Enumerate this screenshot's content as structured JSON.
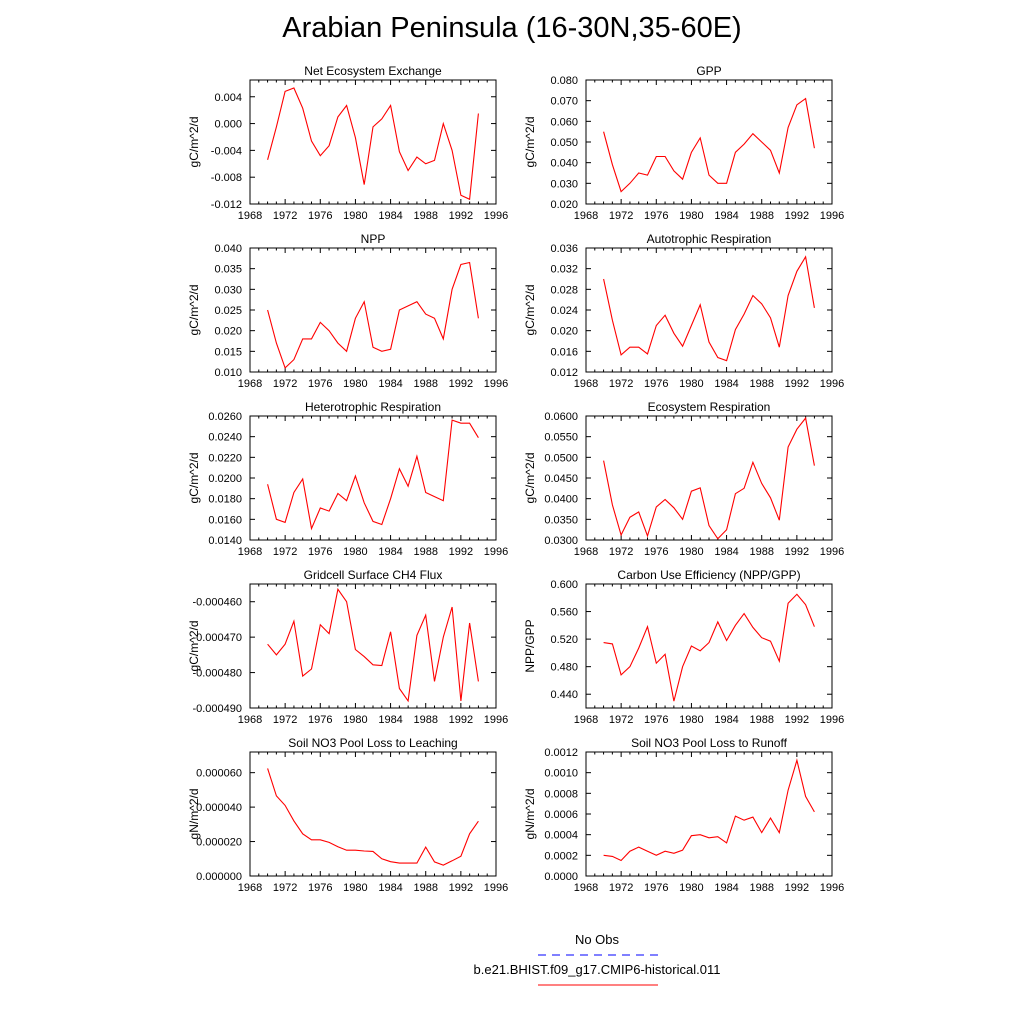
{
  "page_title": "Arabian Peninsula (16-30N,35-60E)",
  "colors": {
    "model_line": "#ff0000",
    "obs_line": "#0000ff"
  },
  "legend": {
    "obs_label": "No Obs",
    "model_label": "b.e21.BHIST.f09_g17.CMIP6-historical.011"
  },
  "chart_data": [
    {
      "type": "line",
      "title": "Net Ecosystem Exchange",
      "xlabel": "",
      "ylabel": "gC/m^2/d",
      "xlim": [
        1968,
        1996
      ],
      "xticks": [
        "1968",
        "1972",
        "1976",
        "1980",
        "1984",
        "1988",
        "1992",
        "1996"
      ],
      "ylim": [
        -0.012,
        0.0065
      ],
      "yticks": [
        "0.004",
        "0.000",
        "-0.004",
        "-0.008",
        "-0.012"
      ],
      "x": [
        1970,
        1971,
        1972,
        1973,
        1974,
        1975,
        1976,
        1977,
        1978,
        1979,
        1980,
        1981,
        1982,
        1983,
        1984,
        1985,
        1986,
        1987,
        1988,
        1989,
        1990,
        1991,
        1992,
        1993,
        1994
      ],
      "series": [
        {
          "values": [
            -0.0054,
            -0.0005,
            0.0048,
            0.0053,
            0.0023,
            -0.0026,
            -0.0048,
            -0.0033,
            0.001,
            0.0027,
            -0.0021,
            -0.0091,
            -0.0005,
            0.0007,
            0.0027,
            -0.0042,
            -0.007,
            -0.005,
            -0.006,
            -0.0055,
            0.0,
            -0.004,
            -0.0107,
            -0.0113,
            0.0015
          ]
        }
      ]
    },
    {
      "type": "line",
      "title": "GPP",
      "xlabel": "",
      "ylabel": "gC/m^2/d",
      "xlim": [
        1968,
        1996
      ],
      "xticks": [
        "1968",
        "1972",
        "1976",
        "1980",
        "1984",
        "1988",
        "1992",
        "1996"
      ],
      "ylim": [
        0.02,
        0.08
      ],
      "yticks": [
        "0.080",
        "0.070",
        "0.060",
        "0.050",
        "0.040",
        "0.030",
        "0.020"
      ],
      "x": [
        1970,
        1971,
        1972,
        1973,
        1974,
        1975,
        1976,
        1977,
        1978,
        1979,
        1980,
        1981,
        1982,
        1983,
        1984,
        1985,
        1986,
        1987,
        1988,
        1989,
        1990,
        1991,
        1992,
        1993,
        1994
      ],
      "series": [
        {
          "values": [
            0.055,
            0.039,
            0.026,
            0.03,
            0.035,
            0.034,
            0.043,
            0.043,
            0.036,
            0.032,
            0.045,
            0.052,
            0.034,
            0.03,
            0.03,
            0.045,
            0.049,
            0.054,
            0.05,
            0.046,
            0.035,
            0.057,
            0.068,
            0.071,
            0.047
          ]
        }
      ]
    },
    {
      "type": "line",
      "title": "NPP",
      "xlabel": "",
      "ylabel": "gC/m^2/d",
      "xlim": [
        1968,
        1996
      ],
      "xticks": [
        "1968",
        "1972",
        "1976",
        "1980",
        "1984",
        "1988",
        "1992",
        "1996"
      ],
      "ylim": [
        0.01,
        0.04
      ],
      "yticks": [
        "0.040",
        "0.035",
        "0.030",
        "0.025",
        "0.020",
        "0.015",
        "0.010"
      ],
      "x": [
        1970,
        1971,
        1972,
        1973,
        1974,
        1975,
        1976,
        1977,
        1978,
        1979,
        1980,
        1981,
        1982,
        1983,
        1984,
        1985,
        1986,
        1987,
        1988,
        1989,
        1990,
        1991,
        1992,
        1993,
        1994
      ],
      "series": [
        {
          "values": [
            0.025,
            0.017,
            0.011,
            0.013,
            0.018,
            0.018,
            0.022,
            0.02,
            0.017,
            0.015,
            0.023,
            0.027,
            0.016,
            0.015,
            0.0155,
            0.025,
            0.026,
            0.027,
            0.024,
            0.023,
            0.018,
            0.03,
            0.036,
            0.0365,
            0.023
          ]
        }
      ]
    },
    {
      "type": "line",
      "title": "Autotrophic Respiration",
      "xlabel": "",
      "ylabel": "gC/m^2/d",
      "xlim": [
        1968,
        1996
      ],
      "xticks": [
        "1968",
        "1972",
        "1976",
        "1980",
        "1984",
        "1988",
        "1992",
        "1996"
      ],
      "ylim": [
        0.012,
        0.036
      ],
      "yticks": [
        "0.036",
        "0.032",
        "0.028",
        "0.024",
        "0.020",
        "0.016",
        "0.012"
      ],
      "x": [
        1970,
        1971,
        1972,
        1973,
        1974,
        1975,
        1976,
        1977,
        1978,
        1979,
        1980,
        1981,
        1982,
        1983,
        1984,
        1985,
        1986,
        1987,
        1988,
        1989,
        1990,
        1991,
        1992,
        1993,
        1994
      ],
      "series": [
        {
          "values": [
            0.03,
            0.022,
            0.0153,
            0.0168,
            0.0168,
            0.0155,
            0.021,
            0.023,
            0.0195,
            0.017,
            0.021,
            0.025,
            0.0178,
            0.0148,
            0.0142,
            0.0202,
            0.0232,
            0.0268,
            0.0252,
            0.0225,
            0.0168,
            0.0268,
            0.0315,
            0.0343,
            0.0244
          ]
        }
      ]
    },
    {
      "type": "line",
      "title": "Heterotrophic Respiration",
      "xlabel": "",
      "ylabel": "gC/m^2/d",
      "xlim": [
        1968,
        1996
      ],
      "xticks": [
        "1968",
        "1972",
        "1976",
        "1980",
        "1984",
        "1988",
        "1992",
        "1996"
      ],
      "ylim": [
        0.014,
        0.026
      ],
      "yticks": [
        "0.0260",
        "0.0240",
        "0.0220",
        "0.0200",
        "0.0180",
        "0.0160",
        "0.0140"
      ],
      "x": [
        1970,
        1971,
        1972,
        1973,
        1974,
        1975,
        1976,
        1977,
        1978,
        1979,
        1980,
        1981,
        1982,
        1983,
        1984,
        1985,
        1986,
        1987,
        1988,
        1989,
        1990,
        1991,
        1992,
        1993,
        1994
      ],
      "series": [
        {
          "values": [
            0.0194,
            0.016,
            0.0157,
            0.0186,
            0.0199,
            0.0151,
            0.0171,
            0.0168,
            0.0185,
            0.0178,
            0.0202,
            0.0176,
            0.0158,
            0.0155,
            0.018,
            0.0209,
            0.0192,
            0.0221,
            0.0186,
            0.0182,
            0.0178,
            0.0256,
            0.0253,
            0.0253,
            0.0239
          ]
        }
      ]
    },
    {
      "type": "line",
      "title": "Ecosystem Respiration",
      "xlabel": "",
      "ylabel": "gC/m^2/d",
      "xlim": [
        1968,
        1996
      ],
      "xticks": [
        "1968",
        "1972",
        "1976",
        "1980",
        "1984",
        "1988",
        "1992",
        "1996"
      ],
      "ylim": [
        0.03,
        0.06
      ],
      "yticks": [
        "0.0600",
        "0.0550",
        "0.0500",
        "0.0450",
        "0.0400",
        "0.0350",
        "0.0300"
      ],
      "x": [
        1970,
        1971,
        1972,
        1973,
        1974,
        1975,
        1976,
        1977,
        1978,
        1979,
        1980,
        1981,
        1982,
        1983,
        1984,
        1985,
        1986,
        1987,
        1988,
        1989,
        1990,
        1991,
        1992,
        1993,
        1994
      ],
      "series": [
        {
          "values": [
            0.0492,
            0.0385,
            0.0312,
            0.0355,
            0.0368,
            0.031,
            0.038,
            0.0398,
            0.0378,
            0.035,
            0.0418,
            0.0426,
            0.0335,
            0.0303,
            0.0325,
            0.0412,
            0.0425,
            0.0488,
            0.0437,
            0.0402,
            0.0348,
            0.0525,
            0.0568,
            0.0595,
            0.048
          ]
        }
      ]
    },
    {
      "type": "line",
      "title": "Gridcell Surface CH4 Flux",
      "xlabel": "",
      "ylabel": "gC/m^2/d",
      "xlim": [
        1968,
        1996
      ],
      "xticks": [
        "1968",
        "1972",
        "1976",
        "1980",
        "1984",
        "1988",
        "1992",
        "1996"
      ],
      "ylim": [
        -0.00049,
        -0.000455
      ],
      "yticks": [
        "-0.000460",
        "-0.000470",
        "-0.000480",
        "-0.000490"
      ],
      "x": [
        1970,
        1971,
        1972,
        1973,
        1974,
        1975,
        1976,
        1977,
        1978,
        1979,
        1980,
        1981,
        1982,
        1983,
        1984,
        1985,
        1986,
        1987,
        1988,
        1989,
        1990,
        1991,
        1992,
        1993,
        1994
      ],
      "series": [
        {
          "values": [
            -0.000472,
            -0.000475,
            -0.000472,
            -0.0004655,
            -0.000481,
            -0.000479,
            -0.0004665,
            -0.000469,
            -0.0004565,
            -0.00046,
            -0.0004735,
            -0.0004755,
            -0.0004778,
            -0.000478,
            -0.0004685,
            -0.0004845,
            -0.000488,
            -0.0004695,
            -0.0004638,
            -0.0004825,
            -0.00047,
            -0.0004615,
            -0.000488,
            -0.000466,
            -0.0004825
          ]
        }
      ]
    },
    {
      "type": "line",
      "title": "Carbon Use Efficiency (NPP/GPP)",
      "xlabel": "",
      "ylabel": "NPP/GPP",
      "xlim": [
        1968,
        1996
      ],
      "xticks": [
        "1968",
        "1972",
        "1976",
        "1980",
        "1984",
        "1988",
        "1992",
        "1996"
      ],
      "ylim": [
        0.42,
        0.6
      ],
      "yticks": [
        "0.600",
        "0.560",
        "0.520",
        "0.480",
        "0.440"
      ],
      "x": [
        1970,
        1971,
        1972,
        1973,
        1974,
        1975,
        1976,
        1977,
        1978,
        1979,
        1980,
        1981,
        1982,
        1983,
        1984,
        1985,
        1986,
        1987,
        1988,
        1989,
        1990,
        1991,
        1992,
        1993,
        1994
      ],
      "series": [
        {
          "values": [
            0.515,
            0.513,
            0.468,
            0.48,
            0.507,
            0.538,
            0.485,
            0.498,
            0.43,
            0.48,
            0.51,
            0.503,
            0.515,
            0.545,
            0.518,
            0.54,
            0.557,
            0.537,
            0.522,
            0.517,
            0.488,
            0.572,
            0.585,
            0.57,
            0.538
          ]
        }
      ]
    },
    {
      "type": "line",
      "title": "Soil NO3 Pool Loss to Leaching",
      "xlabel": "",
      "ylabel": "gN/m^2/d",
      "xlim": [
        1968,
        1996
      ],
      "xticks": [
        "1968",
        "1972",
        "1976",
        "1980",
        "1984",
        "1988",
        "1992",
        "1996"
      ],
      "ylim": [
        0,
        7.2e-05
      ],
      "yticks": [
        "0.000060",
        "0.000040",
        "0.000020",
        "0.000000"
      ],
      "x": [
        1970,
        1971,
        1972,
        1973,
        1974,
        1975,
        1976,
        1977,
        1978,
        1979,
        1980,
        1981,
        1982,
        1983,
        1984,
        1985,
        1986,
        1987,
        1988,
        1989,
        1990,
        1991,
        1992,
        1993,
        1994
      ],
      "series": [
        {
          "values": [
            6.25e-05,
            4.65e-05,
            4.1e-05,
            3.2e-05,
            2.45e-05,
            2.1e-05,
            2.1e-05,
            1.95e-05,
            1.7e-05,
            1.5e-05,
            1.5e-05,
            1.45e-05,
            1.43e-05,
            1e-05,
            8.3e-06,
            7.5e-06,
            7.5e-06,
            7.5e-06,
            1.68e-05,
            8.2e-06,
            6.3e-06,
            8.8e-06,
            1.15e-05,
            2.45e-05,
            3.18e-05
          ]
        }
      ]
    },
    {
      "type": "line",
      "title": "Soil NO3 Pool Loss to Runoff",
      "xlabel": "",
      "ylabel": "gN/m^2/d",
      "xlim": [
        1968,
        1996
      ],
      "xticks": [
        "1968",
        "1972",
        "1976",
        "1980",
        "1984",
        "1988",
        "1992",
        "1996"
      ],
      "ylim": [
        0,
        0.0012
      ],
      "yticks": [
        "0.0012",
        "0.0010",
        "0.0008",
        "0.0006",
        "0.0004",
        "0.0002",
        "0.0000"
      ],
      "x": [
        1970,
        1971,
        1972,
        1973,
        1974,
        1975,
        1976,
        1977,
        1978,
        1979,
        1980,
        1981,
        1982,
        1983,
        1984,
        1985,
        1986,
        1987,
        1988,
        1989,
        1990,
        1991,
        1992,
        1993,
        1994
      ],
      "series": [
        {
          "values": [
            0.0002,
            0.00019,
            0.00015,
            0.00024,
            0.00028,
            0.00024,
            0.0002,
            0.00024,
            0.00022,
            0.00025,
            0.00039,
            0.0004,
            0.00037,
            0.00038,
            0.00032,
            0.00058,
            0.00054,
            0.00057,
            0.00042,
            0.00056,
            0.00042,
            0.00083,
            0.00112,
            0.00077,
            0.00062
          ]
        }
      ]
    }
  ]
}
